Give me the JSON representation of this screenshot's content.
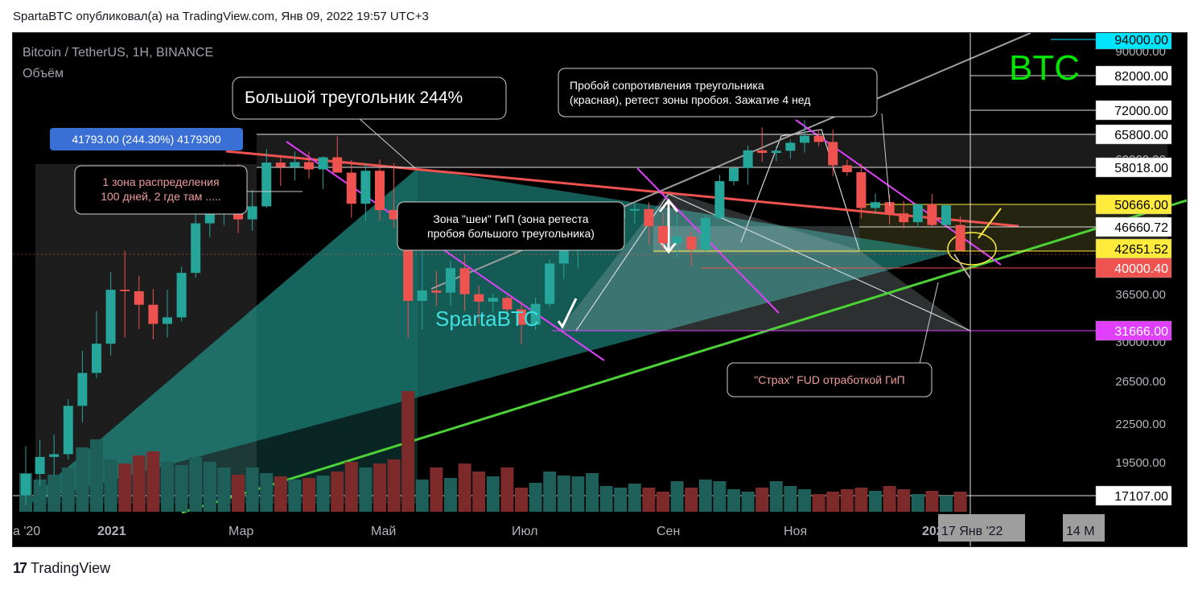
{
  "header": {
    "text": "SpartaBTC опубликовал(а) на TradingView.com, Янв 09, 2022 19:57 UTC+3"
  },
  "footer": {
    "logo_mark": "17",
    "brand": "TradingView"
  },
  "chart_data": {
    "type": "candlestick",
    "symbol_line": "Bitcoin / TetherUS, 1H, BINANCE",
    "volume_label": "Объём",
    "watermark": "BTC",
    "author_tag": "SpartaBTC",
    "measure_label": "41793.00 (244.30%) 4179300",
    "annotations": [
      "Большой треугольник 244%",
      "1 зона распределения\n100 дней, 2 где там .....",
      "Зона \"шеи\" ГиП (зона ретеста\nпробоя большого треугольника)",
      "Пробой сопротивления треугольника\n(красная), ретест зоны пробоя. Зажатие 4 нед",
      "\"Страх\" FUD отработкой ГиП"
    ],
    "x_ticks": [
      "a '20",
      "2021",
      "Мар",
      "Май",
      "Июл",
      "Сен",
      "Ноя",
      "2022",
      "17 Янв '22",
      "14 M"
    ],
    "y_ticks": [
      "90000.00",
      "60000.00",
      "36500.00",
      "30000.00",
      "26500.00",
      "22500.00",
      "19500.00"
    ],
    "price_levels": [
      {
        "label": "94000.00",
        "color": "#00e5ff",
        "text_color": "#000000"
      },
      {
        "label": "82000.00",
        "color": "#ffffff",
        "text_color": "#000000"
      },
      {
        "label": "72000.00",
        "color": "#ffffff",
        "text_color": "#000000"
      },
      {
        "label": "65800.00",
        "color": "#ffffff",
        "text_color": "#000000"
      },
      {
        "label": "58018.00",
        "color": "#ffffff",
        "text_color": "#000000"
      },
      {
        "label": "50666.00",
        "color": "#ffeb3b",
        "text_color": "#000000"
      },
      {
        "label": "46660.72",
        "color": "#ffffff",
        "text_color": "#000000"
      },
      {
        "label": "42651.52",
        "color": "#ffeb3b",
        "text_color": "#000000"
      },
      {
        "label": "40000.40",
        "color": "#ef5350",
        "text_color": "#ffffff"
      },
      {
        "label": "31666.00",
        "color": "#e040fb",
        "text_color": "#ffffff"
      },
      {
        "label": "17107.00",
        "color": "#ffffff",
        "text_color": "#000000"
      }
    ],
    "candles": [
      {
        "o": 16500,
        "h": 19900,
        "l": 15900,
        "c": 17900
      },
      {
        "o": 17900,
        "h": 20400,
        "l": 17100,
        "c": 19100
      },
      {
        "o": 19100,
        "h": 20800,
        "l": 17800,
        "c": 19300
      },
      {
        "o": 19300,
        "h": 23800,
        "l": 18900,
        "c": 23200
      },
      {
        "o": 23200,
        "h": 28600,
        "l": 21800,
        "c": 26300
      },
      {
        "o": 26300,
        "h": 33300,
        "l": 25800,
        "c": 29400
      },
      {
        "o": 29400,
        "h": 38600,
        "l": 28100,
        "c": 36100
      },
      {
        "o": 36100,
        "h": 41900,
        "l": 30100,
        "c": 35900
      },
      {
        "o": 35900,
        "h": 38100,
        "l": 31100,
        "c": 34100
      },
      {
        "o": 34100,
        "h": 36200,
        "l": 29900,
        "c": 31700
      },
      {
        "o": 31700,
        "h": 36100,
        "l": 30100,
        "c": 32500
      },
      {
        "o": 32500,
        "h": 39400,
        "l": 32000,
        "c": 38500
      },
      {
        "o": 38500,
        "h": 48600,
        "l": 37800,
        "c": 46500
      },
      {
        "o": 46500,
        "h": 52500,
        "l": 44100,
        "c": 49100
      },
      {
        "o": 49100,
        "h": 58300,
        "l": 46200,
        "c": 55800
      },
      {
        "o": 55800,
        "h": 58300,
        "l": 44800,
        "c": 47200
      },
      {
        "o": 47200,
        "h": 52800,
        "l": 45200,
        "c": 49600
      },
      {
        "o": 49600,
        "h": 61700,
        "l": 49300,
        "c": 58600
      },
      {
        "o": 58600,
        "h": 60300,
        "l": 53600,
        "c": 57600
      },
      {
        "o": 57600,
        "h": 61200,
        "l": 54700,
        "c": 58700
      },
      {
        "o": 58700,
        "h": 61100,
        "l": 55100,
        "c": 57100
      },
      {
        "o": 57100,
        "h": 60000,
        "l": 53000,
        "c": 59800
      },
      {
        "o": 59800,
        "h": 64800,
        "l": 56600,
        "c": 56400
      },
      {
        "o": 56400,
        "h": 59200,
        "l": 47500,
        "c": 50100
      },
      {
        "o": 50100,
        "h": 58500,
        "l": 47000,
        "c": 56800
      },
      {
        "o": 56800,
        "h": 59300,
        "l": 46900,
        "c": 48900
      },
      {
        "o": 48900,
        "h": 58500,
        "l": 45700,
        "c": 47200
      },
      {
        "o": 47200,
        "h": 47800,
        "l": 30100,
        "c": 34600
      },
      {
        "o": 34600,
        "h": 41800,
        "l": 31000,
        "c": 36000
      },
      {
        "o": 36000,
        "h": 38800,
        "l": 33900,
        "c": 35700
      },
      {
        "o": 35700,
        "h": 40300,
        "l": 34000,
        "c": 39200
      },
      {
        "o": 39200,
        "h": 41300,
        "l": 33300,
        "c": 35500
      },
      {
        "o": 35500,
        "h": 36700,
        "l": 31700,
        "c": 34500
      },
      {
        "o": 34500,
        "h": 35600,
        "l": 33100,
        "c": 35000
      },
      {
        "o": 35000,
        "h": 35300,
        "l": 32900,
        "c": 33500
      },
      {
        "o": 33500,
        "h": 34500,
        "l": 29300,
        "c": 31600
      },
      {
        "o": 31600,
        "h": 35000,
        "l": 31000,
        "c": 34200
      },
      {
        "o": 34200,
        "h": 40500,
        "l": 33800,
        "c": 39900
      },
      {
        "o": 39900,
        "h": 42500,
        "l": 37600,
        "c": 42200
      },
      {
        "o": 42200,
        "h": 46700,
        "l": 39200,
        "c": 44500
      },
      {
        "o": 44500,
        "h": 46200,
        "l": 43700,
        "c": 45500
      },
      {
        "o": 45500,
        "h": 48100,
        "l": 45200,
        "c": 47500
      },
      {
        "o": 47500,
        "h": 49500,
        "l": 45600,
        "c": 48800
      },
      {
        "o": 48800,
        "h": 50500,
        "l": 46500,
        "c": 49100
      },
      {
        "o": 49100,
        "h": 50400,
        "l": 42900,
        "c": 46000
      },
      {
        "o": 46000,
        "h": 48400,
        "l": 42000,
        "c": 43100
      },
      {
        "o": 43100,
        "h": 48000,
        "l": 40800,
        "c": 44200
      },
      {
        "o": 44200,
        "h": 45000,
        "l": 39500,
        "c": 42100
      },
      {
        "o": 42100,
        "h": 48000,
        "l": 41700,
        "c": 47500
      },
      {
        "o": 47500,
        "h": 55900,
        "l": 47100,
        "c": 54600
      },
      {
        "o": 54600,
        "h": 57800,
        "l": 53700,
        "c": 57400
      },
      {
        "o": 57400,
        "h": 62500,
        "l": 53900,
        "c": 61400
      },
      {
        "o": 61400,
        "h": 67000,
        "l": 58800,
        "c": 60800
      },
      {
        "o": 60800,
        "h": 62300,
        "l": 58900,
        "c": 61300
      },
      {
        "o": 61300,
        "h": 64000,
        "l": 59500,
        "c": 63200
      },
      {
        "o": 63200,
        "h": 68900,
        "l": 60900,
        "c": 64900
      },
      {
        "o": 64900,
        "h": 66500,
        "l": 62400,
        "c": 63400
      },
      {
        "o": 63400,
        "h": 66400,
        "l": 55600,
        "c": 58000
      },
      {
        "o": 58000,
        "h": 59200,
        "l": 55700,
        "c": 56500
      },
      {
        "o": 56500,
        "h": 58400,
        "l": 47400,
        "c": 49300
      },
      {
        "o": 49300,
        "h": 52100,
        "l": 48200,
        "c": 50400
      },
      {
        "o": 50400,
        "h": 51900,
        "l": 46300,
        "c": 48300
      },
      {
        "o": 48300,
        "h": 50600,
        "l": 45600,
        "c": 46700
      },
      {
        "o": 46700,
        "h": 49500,
        "l": 45800,
        "c": 50000
      },
      {
        "o": 50000,
        "h": 52000,
        "l": 46000,
        "c": 46200
      },
      {
        "o": 46200,
        "h": 50000,
        "l": 46100,
        "c": 49800
      },
      {
        "o": 46200,
        "h": 47800,
        "l": 41800,
        "c": 41900
      }
    ],
    "volumes": [
      48,
      40,
      46,
      55,
      80,
      90,
      65,
      60,
      70,
      75,
      62,
      58,
      68,
      62,
      55,
      46,
      55,
      48,
      44,
      40,
      42,
      45,
      50,
      62,
      55,
      60,
      65,
      150,
      40,
      55,
      42,
      60,
      50,
      44,
      55,
      30,
      36,
      50,
      45,
      44,
      48,
      32,
      30,
      35,
      30,
      25,
      38,
      30,
      40,
      38,
      28,
      25,
      30,
      38,
      32,
      28,
      22,
      25,
      28,
      30,
      26,
      32,
      28,
      22,
      26,
      20,
      25
    ],
    "ylim": [
      17107,
      94000
    ],
    "scale": "log"
  }
}
